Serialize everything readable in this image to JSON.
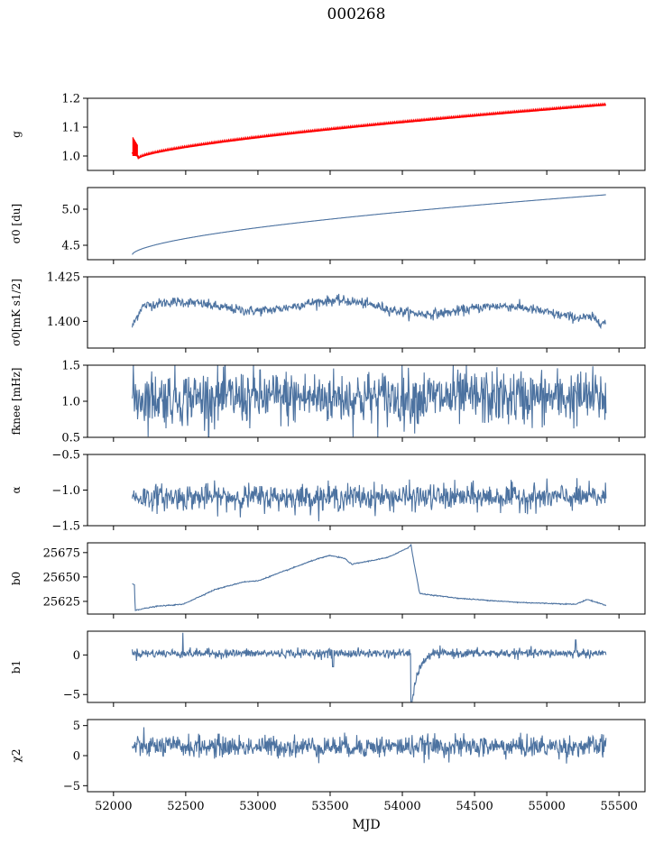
{
  "title": "000268",
  "colors": {
    "series": "#4c72a0",
    "highlight": "#ff0000",
    "frame": "#000000"
  },
  "chart_data": {
    "type": "line",
    "xlabel": "MJD",
    "xlim": [
      51820,
      55680
    ],
    "xticks": [
      52000,
      52500,
      53000,
      53500,
      54000,
      54500,
      55000,
      55500
    ],
    "x_start": 52130,
    "x_end": 55410,
    "panels": [
      {
        "id": "g",
        "ylabel": "g",
        "ylim": [
          0.95,
          1.2
        ],
        "yticks": [
          1.0,
          1.1,
          1.2
        ],
        "tick_labels": [
          "1.0",
          "1.1",
          "1.2"
        ],
        "shape": "g"
      },
      {
        "id": "sigma0_du",
        "ylabel": "σ0 [du]",
        "ylim": [
          4.3,
          5.3
        ],
        "yticks": [
          4.5,
          5.0
        ],
        "tick_labels": [
          "4.5",
          "5.0"
        ],
        "shape": "sigma"
      },
      {
        "id": "sigma0_mk",
        "ylabel": "σ0[mK s1/2]",
        "ylim": [
          1.385,
          1.425
        ],
        "yticks": [
          1.4,
          1.425
        ],
        "tick_labels": [
          "1.400",
          "1.425"
        ],
        "shape": "noisy_wave",
        "mean": 1.407,
        "noise": 0.003
      },
      {
        "id": "fknee",
        "ylabel": "fknee [mHz]",
        "ylim": [
          0.5,
          1.5
        ],
        "yticks": [
          0.5,
          1.0,
          1.5
        ],
        "tick_labels": [
          "0.5",
          "1.0",
          "1.5"
        ],
        "shape": "noise",
        "mean": 1.05,
        "noise": 0.19
      },
      {
        "id": "alpha",
        "ylabel": "α",
        "ylim": [
          -1.5,
          -0.5
        ],
        "yticks": [
          -1.5,
          -1.0,
          -0.5
        ],
        "tick_labels": [
          "−1.5",
          "−1.0",
          "−0.5"
        ],
        "shape": "noise",
        "mean": -1.1,
        "noise": 0.09
      },
      {
        "id": "b0",
        "ylabel": "b0",
        "ylim": [
          25612,
          25685
        ],
        "yticks": [
          25625,
          25650,
          25675
        ],
        "tick_labels": [
          "25625",
          "25650",
          "25675"
        ],
        "shape": "b0"
      },
      {
        "id": "b1",
        "ylabel": "b1",
        "ylim": [
          -6,
          3
        ],
        "yticks": [
          -5,
          0
        ],
        "tick_labels": [
          "−5",
          "0"
        ],
        "shape": "b1"
      },
      {
        "id": "chi2",
        "ylabel": "χ2",
        "ylim": [
          -6,
          6
        ],
        "yticks": [
          -5,
          0,
          5
        ],
        "tick_labels": [
          "−5",
          "0",
          "5"
        ],
        "shape": "noise",
        "mean": 1.5,
        "noise": 0.9
      }
    ],
    "g_highlight": "red overlay on g",
    "b0_knots": [
      [
        52130,
        25643
      ],
      [
        52145,
        25642
      ],
      [
        52150,
        25616
      ],
      [
        52300,
        25620
      ],
      [
        52480,
        25622
      ],
      [
        52700,
        25637
      ],
      [
        52900,
        25645
      ],
      [
        53000,
        25646
      ],
      [
        53200,
        25657
      ],
      [
        53400,
        25668
      ],
      [
        53500,
        25672
      ],
      [
        53600,
        25669
      ],
      [
        53650,
        25663
      ],
      [
        53900,
        25670
      ],
      [
        54040,
        25680
      ],
      [
        54060,
        25683
      ],
      [
        54080,
        25665
      ],
      [
        54120,
        25633
      ],
      [
        54400,
        25628
      ],
      [
        54800,
        25624
      ],
      [
        55200,
        25622
      ],
      [
        55280,
        25627
      ],
      [
        55410,
        25621
      ]
    ]
  }
}
